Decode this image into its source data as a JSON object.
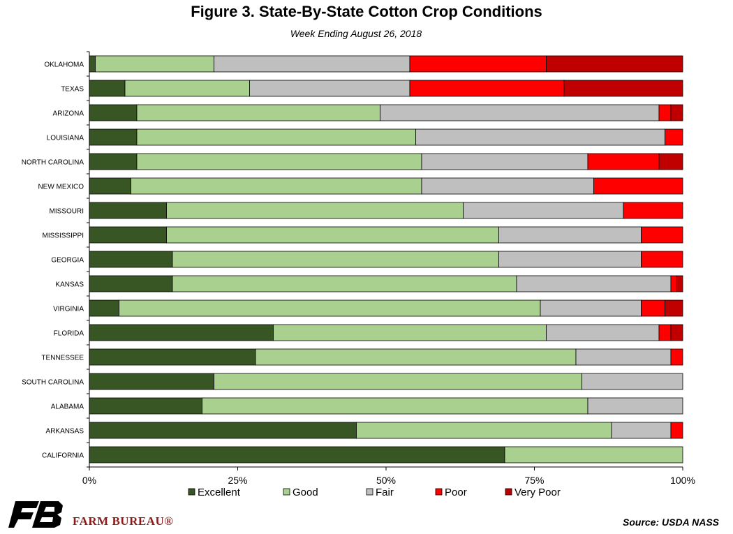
{
  "chart_data": {
    "type": "bar",
    "orientation": "horizontal",
    "stacked": true,
    "title": "Figure 3. State-By-State Cotton Crop Conditions",
    "subtitle": "Week Ending August 26, 2018",
    "xlim": [
      0,
      100
    ],
    "x_ticks": [
      "0%",
      "25%",
      "50%",
      "75%",
      "100%"
    ],
    "legend_position": "bottom",
    "categories": [
      "OKLAHOMA",
      "TEXAS",
      "ARIZONA",
      "LOUISIANA",
      "NORTH CAROLINA",
      "NEW MEXICO",
      "MISSOURI",
      "MISSISSIPPI",
      "GEORGIA",
      "KANSAS",
      "VIRGINIA",
      "FLORIDA",
      "TENNESSEE",
      "SOUTH CAROLINA",
      "ALABAMA",
      "ARKANSAS",
      "CALIFORNIA"
    ],
    "series": [
      {
        "name": "Excellent",
        "color": "#375623",
        "values": [
          1,
          6,
          8,
          8,
          8,
          7,
          13,
          13,
          14,
          14,
          5,
          31,
          28,
          21,
          19,
          45,
          70
        ]
      },
      {
        "name": "Good",
        "color": "#a9d08e",
        "values": [
          20,
          21,
          41,
          47,
          48,
          49,
          50,
          56,
          55,
          58,
          71,
          46,
          54,
          62,
          65,
          43,
          30
        ]
      },
      {
        "name": "Fair",
        "color": "#bfbfbf",
        "values": [
          33,
          27,
          47,
          42,
          28,
          29,
          27,
          24,
          24,
          26,
          17,
          19,
          16,
          17,
          16,
          10,
          0
        ]
      },
      {
        "name": "Poor",
        "color": "#ff0000",
        "values": [
          23,
          26,
          2,
          3,
          12,
          15,
          10,
          7,
          7,
          1,
          4,
          2,
          2,
          0,
          0,
          2,
          0
        ]
      },
      {
        "name": "Very Poor",
        "color": "#c00000",
        "values": [
          23,
          20,
          2,
          0,
          4,
          0,
          0,
          0,
          0,
          1,
          3,
          2,
          0,
          0,
          0,
          0,
          0
        ]
      }
    ]
  },
  "footer": {
    "brand": "FARM BUREAU®",
    "source": "Source: USDA NASS"
  }
}
